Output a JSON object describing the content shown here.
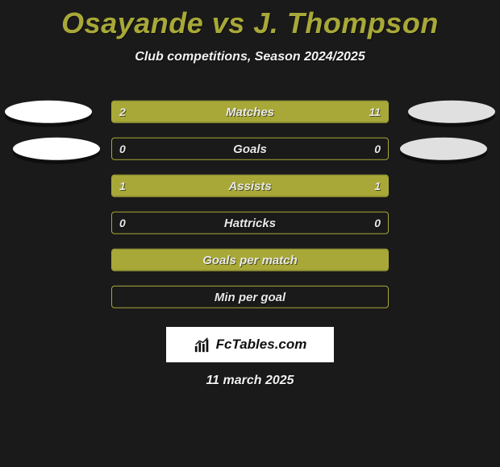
{
  "title": "Osayande vs J. Thompson",
  "subtitle": "Club competitions, Season 2024/2025",
  "colors": {
    "bg": "#1a1a1a",
    "accent": "#a8a838",
    "text": "#f0f0f0",
    "ellipse_left": "#ffffff",
    "ellipse_right": "#e0e0e0"
  },
  "rows": [
    {
      "label": "Matches",
      "left": "2",
      "right": "11",
      "left_pct": 15.4,
      "right_pct": 84.6,
      "ellipse": "a"
    },
    {
      "label": "Goals",
      "left": "0",
      "right": "0",
      "left_pct": 0,
      "right_pct": 0,
      "ellipse": "b"
    },
    {
      "label": "Assists",
      "left": "1",
      "right": "1",
      "left_pct": 50,
      "right_pct": 50,
      "ellipse": "none"
    },
    {
      "label": "Hattricks",
      "left": "0",
      "right": "0",
      "left_pct": 0,
      "right_pct": 0,
      "ellipse": "none"
    },
    {
      "label": "Goals per match",
      "left": "",
      "right": "",
      "left_pct": 100,
      "right_pct": 0,
      "ellipse": "none"
    },
    {
      "label": "Min per goal",
      "left": "",
      "right": "",
      "left_pct": 0,
      "right_pct": 0,
      "ellipse": "none"
    }
  ],
  "logo": {
    "text": "FcTables.com"
  },
  "footer_date": "11 march 2025"
}
